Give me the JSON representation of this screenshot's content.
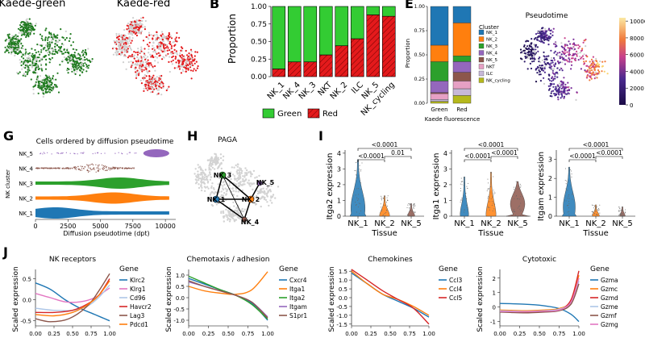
{
  "panelA": {
    "titles": [
      "Kaede-green",
      "Kaede-red"
    ],
    "colors": {
      "green": "#1f7a1f",
      "red": "#e41a1c",
      "grey": "#cfcfcf"
    }
  },
  "panelB": {
    "letter": "B",
    "chart_data": {
      "type": "bar",
      "stacked": true,
      "categories": [
        "NK_1",
        "NK_4",
        "NK_3",
        "NKT",
        "NK_2",
        "ILC",
        "NK_5",
        "NK_cycling"
      ],
      "series": [
        {
          "name": "Red",
          "values": [
            0.11,
            0.21,
            0.21,
            0.31,
            0.44,
            0.54,
            0.88,
            0.86
          ],
          "color": "#e41a1c"
        },
        {
          "name": "Green",
          "values": [
            0.89,
            0.79,
            0.79,
            0.69,
            0.56,
            0.46,
            0.12,
            0.14
          ],
          "color": "#33cc33"
        }
      ],
      "ylabel": "Proportion",
      "yticks": [
        "0.00",
        "0.25",
        "0.50",
        "0.75",
        "1.00"
      ],
      "ylim": [
        0,
        1
      ],
      "legend": [
        "Green",
        "Red"
      ]
    }
  },
  "panelE": {
    "letter": "E",
    "chart_data": {
      "type": "bar",
      "stacked": true,
      "categories": [
        "Green",
        "Red"
      ],
      "series": [
        {
          "name": "NK_cycling",
          "values": [
            0.02,
            0.08
          ],
          "color": "#b5b81c"
        },
        {
          "name": "ILC",
          "values": [
            0.02,
            0.07
          ],
          "color": "#c7b8d8"
        },
        {
          "name": "NKT",
          "values": [
            0.06,
            0.08
          ],
          "color": "#e6a0c4"
        },
        {
          "name": "NK_5",
          "values": [
            0.01,
            0.09
          ],
          "color": "#8c564b"
        },
        {
          "name": "NK_4",
          "values": [
            0.12,
            0.11
          ],
          "color": "#9467bd"
        },
        {
          "name": "NK_3",
          "values": [
            0.2,
            0.06
          ],
          "color": "#2ca02c"
        },
        {
          "name": "NK_2",
          "values": [
            0.17,
            0.34
          ],
          "color": "#ff7f0e"
        },
        {
          "name": "NK_1",
          "values": [
            0.4,
            0.17
          ],
          "color": "#1f77b4"
        }
      ],
      "legend_order": [
        "NK_1",
        "NK_2",
        "NK_3",
        "NK_4",
        "NK_5",
        "NKT",
        "ILC",
        "NK_cycling"
      ],
      "ylabel": "Proportion",
      "xlabel": "Kaede fluorescence",
      "yticks": [
        "0.00",
        "0.25",
        "0.50",
        "0.75",
        "1.00"
      ],
      "legend_title": "Cluster",
      "ylim": [
        0,
        1
      ]
    }
  },
  "panelF": {
    "title": "Pseudotime",
    "colorbar_ticks": [
      "0",
      "2000",
      "4000",
      "6000",
      "8000",
      "10000"
    ],
    "colorbar_values": [
      0,
      2000,
      4000,
      6000,
      8000,
      10000
    ],
    "colorbar_max": 10400
  },
  "panelG": {
    "letter": "G",
    "title": "Cells ordered by diffusion pseudotime",
    "chart_data": {
      "type": "scatter",
      "categories": [
        "NK_5",
        "NK_4",
        "NK_3",
        "NK_2",
        "NK_1"
      ],
      "colors": [
        "#9467bd",
        "#8c564b",
        "#2ca02c",
        "#ff7f0e",
        "#1f77b4"
      ],
      "xticks": [
        0,
        2500,
        5000,
        7500,
        10000
      ],
      "xlim": [
        0,
        10800
      ],
      "xlabel": "Diffusion pseudotime (dpt)",
      "ylabel": "NK cluster"
    }
  },
  "panelH": {
    "letter": "H",
    "title": "PAGA",
    "nodes": [
      "NK_3",
      "NK_1",
      "NK_2",
      "NK_5",
      "NK_4"
    ]
  },
  "panelI": {
    "letter": "I",
    "xlabel": "Tissue",
    "categories": [
      "NK_1",
      "NK_2",
      "NK_5"
    ],
    "violins": [
      {
        "ylabel": "Itga2 expression",
        "yticks": [
          "0",
          "1",
          "2",
          "3",
          "4"
        ],
        "brackets": [
          "<0.0001",
          "<0.0001",
          "0.01"
        ]
      },
      {
        "ylabel": "Itga1 expression",
        "yticks": [
          "0",
          "1",
          "2",
          "3",
          "4"
        ],
        "brackets": [
          "<0.0001",
          "<0.0001",
          "<0.0001"
        ]
      },
      {
        "ylabel": "Itgam expression",
        "yticks": [
          "0",
          "1",
          "2",
          "3"
        ],
        "brackets": [
          "<0.0001",
          "<0.0001",
          "<0.0001"
        ]
      }
    ]
  },
  "panelJ": {
    "letter": "J",
    "ylabel": "Scaled expression",
    "legend_title": "Gene",
    "xticks": [
      "0.00",
      "0.25",
      "0.50",
      "0.75",
      "1.00"
    ],
    "charts": [
      {
        "title": "NK receptors",
        "type": "line",
        "yticks": [
          "-0.5",
          "0.0",
          "0.5"
        ],
        "yvalues": [
          -0.5,
          0.0,
          0.5
        ],
        "ylim": [
          -0.62,
          0.72
        ],
        "series": [
          {
            "name": "Klrc2",
            "color": "#1f77b4",
            "values": [
              [
                0,
                0.4
              ],
              [
                0.2,
                0.25
              ],
              [
                0.4,
                0.0
              ],
              [
                0.6,
                -0.2
              ],
              [
                0.8,
                -0.35
              ],
              [
                1.0,
                -0.5
              ]
            ]
          },
          {
            "name": "Klrg1",
            "color": "#e377c2",
            "values": [
              [
                0,
                0.15
              ],
              [
                0.2,
                0.05
              ],
              [
                0.4,
                -0.05
              ],
              [
                0.6,
                -0.05
              ],
              [
                0.8,
                0.05
              ],
              [
                1.0,
                0.28
              ]
            ]
          },
          {
            "name": "Cd96",
            "color": "#aec7e8",
            "values": [
              [
                0,
                -0.2
              ],
              [
                0.25,
                -0.25
              ],
              [
                0.5,
                -0.25
              ],
              [
                0.7,
                -0.15
              ],
              [
                0.85,
                0.05
              ],
              [
                1.0,
                0.35
              ]
            ]
          },
          {
            "name": "Havcr2",
            "color": "#d62728",
            "values": [
              [
                0,
                -0.3
              ],
              [
                0.25,
                -0.3
              ],
              [
                0.5,
                -0.25
              ],
              [
                0.7,
                -0.1
              ],
              [
                0.85,
                0.1
              ],
              [
                1.0,
                0.5
              ]
            ]
          },
          {
            "name": "Lag3",
            "color": "#8c564b",
            "values": [
              [
                0,
                -0.45
              ],
              [
                0.2,
                -0.52
              ],
              [
                0.45,
                -0.45
              ],
              [
                0.7,
                -0.15
              ],
              [
                0.85,
                0.2
              ],
              [
                1.0,
                0.62
              ]
            ]
          },
          {
            "name": "Pdcd1",
            "color": "#ff7f0e",
            "values": [
              [
                0,
                -0.35
              ],
              [
                0.25,
                -0.38
              ],
              [
                0.5,
                -0.3
              ],
              [
                0.7,
                -0.12
              ],
              [
                0.85,
                0.1
              ],
              [
                1.0,
                0.45
              ]
            ]
          }
        ]
      },
      {
        "title": "Chemotaxis / adhesion",
        "type": "line",
        "yticks": [
          "-1.0",
          "-0.5",
          "0.0",
          "0.5",
          "1.0"
        ],
        "yvalues": [
          -1.0,
          -0.5,
          0.0,
          0.5,
          1.0
        ],
        "ylim": [
          -1.25,
          1.25
        ],
        "series": [
          {
            "name": "Cxcr4",
            "color": "#1f77b4",
            "values": [
              [
                0,
                0.85
              ],
              [
                0.2,
                0.6
              ],
              [
                0.4,
                0.35
              ],
              [
                0.6,
                0.1
              ],
              [
                0.8,
                -0.25
              ],
              [
                1.0,
                -1.0
              ]
            ]
          },
          {
            "name": "Itga1",
            "color": "#ff7f0e",
            "values": [
              [
                0,
                0.5
              ],
              [
                0.2,
                0.3
              ],
              [
                0.4,
                0.2
              ],
              [
                0.6,
                0.15
              ],
              [
                0.8,
                0.35
              ],
              [
                1.0,
                1.15
              ]
            ]
          },
          {
            "name": "Itga2",
            "color": "#2ca02c",
            "values": [
              [
                0,
                0.95
              ],
              [
                0.2,
                0.65
              ],
              [
                0.4,
                0.35
              ],
              [
                0.6,
                0.1
              ],
              [
                0.8,
                -0.3
              ],
              [
                1.0,
                -0.95
              ]
            ]
          },
          {
            "name": "Itgam",
            "color": "#9467bd",
            "values": [
              [
                0,
                0.7
              ],
              [
                0.2,
                0.5
              ],
              [
                0.4,
                0.3
              ],
              [
                0.6,
                0.1
              ],
              [
                0.8,
                -0.2
              ],
              [
                1.0,
                -0.85
              ]
            ]
          },
          {
            "name": "S1pr1",
            "color": "#8c564b",
            "values": [
              [
                0,
                0.75
              ],
              [
                0.2,
                0.5
              ],
              [
                0.4,
                0.3
              ],
              [
                0.6,
                0.1
              ],
              [
                0.8,
                -0.2
              ],
              [
                1.0,
                -0.9
              ]
            ]
          }
        ]
      },
      {
        "title": "Chemokines",
        "type": "line",
        "yticks": [
          "-1.5",
          "-1.0",
          "-0.5",
          "0.0",
          "0.5",
          "1.0",
          "1.5"
        ],
        "yvalues": [
          -1.5,
          -1.0,
          -0.5,
          0.0,
          0.5,
          1.0,
          1.5
        ],
        "ylim": [
          -1.6,
          1.6
        ],
        "series": [
          {
            "name": "Ccl3",
            "color": "#1f77b4",
            "values": [
              [
                0,
                1.4
              ],
              [
                0.2,
                0.8
              ],
              [
                0.4,
                0.2
              ],
              [
                0.6,
                -0.2
              ],
              [
                0.8,
                -0.6
              ],
              [
                1.0,
                -1.1
              ]
            ]
          },
          {
            "name": "Ccl4",
            "color": "#ff7f0e",
            "values": [
              [
                0,
                1.5
              ],
              [
                0.2,
                0.8
              ],
              [
                0.4,
                0.2
              ],
              [
                0.6,
                -0.1
              ],
              [
                0.8,
                -0.5
              ],
              [
                1.0,
                -1.0
              ]
            ]
          },
          {
            "name": "Ccl5",
            "color": "#d62728",
            "values": [
              [
                0,
                1.6
              ],
              [
                0.2,
                1.0
              ],
              [
                0.4,
                0.4
              ],
              [
                0.6,
                -0.1
              ],
              [
                0.8,
                -0.6
              ],
              [
                1.0,
                -1.5
              ]
            ]
          }
        ]
      },
      {
        "title": "Cytotoxic",
        "type": "line",
        "yticks": [
          "-1",
          "0",
          "1",
          "2"
        ],
        "yvalues": [
          -1,
          0,
          1,
          2
        ],
        "ylim": [
          -1.3,
          2.6
        ],
        "series": [
          {
            "name": "Gzma",
            "color": "#1f77b4",
            "values": [
              [
                0,
                0.25
              ],
              [
                0.3,
                0.2
              ],
              [
                0.55,
                0.1
              ],
              [
                0.75,
                -0.1
              ],
              [
                0.9,
                -0.5
              ],
              [
                1.0,
                -1.0
              ]
            ]
          },
          {
            "name": "Gzmc",
            "color": "#ff7f0e",
            "values": [
              [
                0,
                -0.2
              ],
              [
                0.3,
                -0.25
              ],
              [
                0.55,
                -0.2
              ],
              [
                0.75,
                -0.1
              ],
              [
                0.9,
                0.4
              ],
              [
                1.0,
                2.2
              ]
            ]
          },
          {
            "name": "Gzmd",
            "color": "#d62728",
            "values": [
              [
                0,
                -0.3
              ],
              [
                0.3,
                -0.35
              ],
              [
                0.55,
                -0.3
              ],
              [
                0.75,
                -0.2
              ],
              [
                0.9,
                0.5
              ],
              [
                1.0,
                2.5
              ]
            ]
          },
          {
            "name": "Gzme",
            "color": "#aec7e8",
            "values": [
              [
                0,
                -0.25
              ],
              [
                0.3,
                -0.3
              ],
              [
                0.55,
                -0.25
              ],
              [
                0.75,
                -0.15
              ],
              [
                0.9,
                0.3
              ],
              [
                1.0,
                1.8
              ]
            ]
          },
          {
            "name": "Gzmf",
            "color": "#8c564b",
            "values": [
              [
                0,
                -0.35
              ],
              [
                0.3,
                -0.4
              ],
              [
                0.55,
                -0.35
              ],
              [
                0.75,
                -0.25
              ],
              [
                0.9,
                0.2
              ],
              [
                1.0,
                1.6
              ]
            ]
          },
          {
            "name": "Gzmg",
            "color": "#e377c2",
            "values": [
              [
                0,
                -0.3
              ],
              [
                0.3,
                -0.32
              ],
              [
                0.55,
                -0.28
              ],
              [
                0.75,
                -0.2
              ],
              [
                0.9,
                0.35
              ],
              [
                1.0,
                2.0
              ]
            ]
          }
        ]
      }
    ]
  }
}
